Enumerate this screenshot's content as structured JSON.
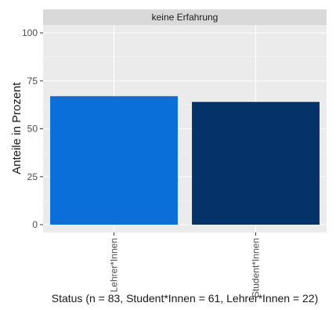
{
  "chart_data": {
    "type": "bar",
    "facet_label": "keine Erfahrung",
    "categories": [
      "Lehrer*Innen",
      "Student*Innen"
    ],
    "values": [
      67,
      64
    ],
    "colors": [
      "#0a6fd8",
      "#04336a"
    ],
    "ylabel": "Anteile in Prozent",
    "xlabel": "Status (n = 83, Student*Innen = 61, Lehrer*Innen = 22)",
    "ylim": [
      0,
      100
    ],
    "yticks": [
      0,
      25,
      50,
      75,
      100
    ],
    "grid": true,
    "panel_background": "#ebebeb"
  }
}
